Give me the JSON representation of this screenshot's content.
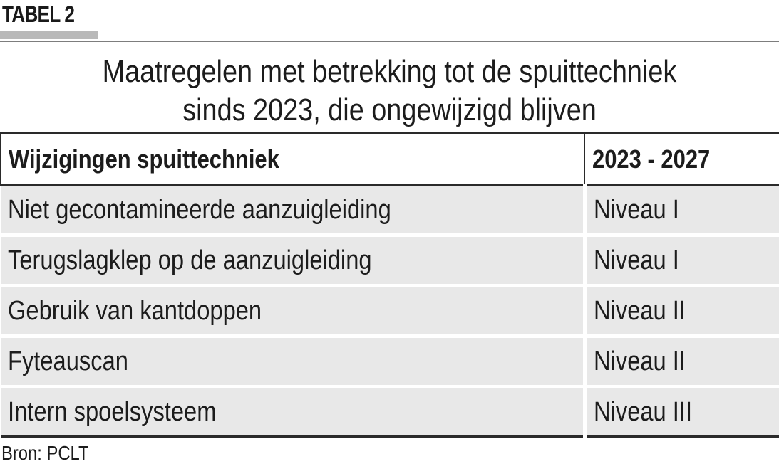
{
  "label": "TABEL 2",
  "title": {
    "line1": "Maatregelen met betrekking tot de spuittechniek",
    "line2": "sinds 2023, die ongewijzigd blijven"
  },
  "table": {
    "headers": [
      "Wijzigingen spuittechniek",
      "2023 - 2027"
    ],
    "rows": [
      [
        "Niet gecontamineerde aanzuigleiding",
        "Niveau I"
      ],
      [
        "Terugslagklep op de aanzuigleiding",
        "Niveau I"
      ],
      [
        "Gebruik van kantdoppen",
        "Niveau II"
      ],
      [
        "Fyteauscan",
        "Niveau II"
      ],
      [
        "Intern spoelsysteem",
        "Niveau III"
      ]
    ]
  },
  "source": "Bron: PCLT",
  "colors": {
    "row_background": "#e8e8e8",
    "label_underline": "#b9b9b9",
    "text": "#1c1c1c"
  }
}
